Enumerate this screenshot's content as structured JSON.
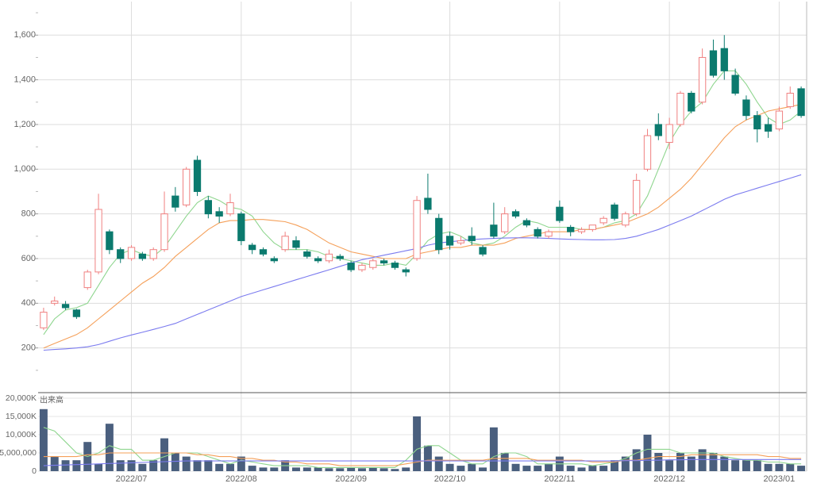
{
  "chart_data": {
    "type": "candlestick",
    "categories": [
      null,
      null,
      null,
      null,
      null,
      null,
      null,
      null,
      "2022/07",
      null,
      null,
      null,
      null,
      null,
      null,
      null,
      null,
      null,
      "2022/08",
      null,
      null,
      null,
      null,
      null,
      null,
      null,
      null,
      null,
      "2022/09",
      null,
      null,
      null,
      null,
      null,
      null,
      null,
      null,
      "2022/10",
      null,
      null,
      null,
      null,
      null,
      null,
      null,
      null,
      null,
      "2022/11",
      null,
      null,
      null,
      null,
      null,
      null,
      null,
      null,
      null,
      "2022/12",
      null,
      null,
      null,
      null,
      null,
      null,
      null,
      null,
      null,
      "2023/01",
      null,
      null
    ],
    "open": [
      290,
      400,
      395,
      370,
      470,
      540,
      720,
      640,
      600,
      620,
      600,
      640,
      880,
      840,
      1040,
      860,
      810,
      800,
      800,
      660,
      640,
      600,
      640,
      680,
      630,
      600,
      590,
      610,
      580,
      550,
      560,
      590,
      580,
      550,
      600,
      870,
      780,
      700,
      670,
      700,
      650,
      750,
      720,
      810,
      770,
      730,
      700,
      830,
      740,
      720,
      730,
      760,
      840,
      750,
      800,
      1000,
      1200,
      1120,
      1200,
      1340,
      1300,
      1530,
      1540,
      1420,
      1310,
      1240,
      1200,
      1180,
      1280,
      1360
    ],
    "high": [
      380,
      430,
      410,
      375,
      550,
      890,
      730,
      650,
      660,
      630,
      650,
      900,
      920,
      1010,
      1060,
      880,
      830,
      890,
      810,
      670,
      650,
      610,
      720,
      700,
      640,
      610,
      640,
      620,
      590,
      580,
      600,
      600,
      590,
      560,
      880,
      980,
      800,
      720,
      700,
      740,
      660,
      850,
      830,
      820,
      780,
      740,
      730,
      860,
      750,
      740,
      750,
      790,
      850,
      810,
      980,
      1180,
      1250,
      1230,
      1350,
      1350,
      1540,
      1580,
      1600,
      1450,
      1330,
      1260,
      1230,
      1280,
      1370,
      1370
    ],
    "low": [
      280,
      390,
      370,
      330,
      460,
      530,
      620,
      580,
      590,
      590,
      590,
      630,
      810,
      830,
      880,
      780,
      760,
      790,
      660,
      620,
      610,
      580,
      630,
      640,
      600,
      580,
      580,
      590,
      540,
      540,
      550,
      570,
      550,
      520,
      590,
      800,
      620,
      640,
      660,
      660,
      610,
      690,
      710,
      780,
      740,
      690,
      690,
      760,
      700,
      710,
      720,
      750,
      770,
      740,
      790,
      990,
      1130,
      1090,
      1190,
      1250,
      1290,
      1410,
      1400,
      1330,
      1220,
      1120,
      1140,
      1170,
      1270,
      1230
    ],
    "close": [
      360,
      410,
      380,
      340,
      540,
      820,
      640,
      600,
      650,
      600,
      640,
      800,
      830,
      1000,
      900,
      800,
      790,
      850,
      680,
      640,
      620,
      590,
      700,
      650,
      610,
      590,
      620,
      600,
      550,
      570,
      590,
      580,
      560,
      540,
      860,
      820,
      640,
      660,
      680,
      680,
      620,
      700,
      800,
      790,
      750,
      700,
      720,
      770,
      720,
      730,
      750,
      780,
      780,
      800,
      950,
      1150,
      1150,
      1200,
      1340,
      1260,
      1500,
      1420,
      1440,
      1340,
      1240,
      1180,
      1170,
      1260,
      1340,
      1240
    ],
    "up_color": "#f08080",
    "down_color": "#0b7a6e",
    "ylim": [
      0,
      1750
    ],
    "yticks": [
      200,
      400,
      600,
      800,
      {
        "value": 1000,
        "label": "1,000"
      },
      {
        "value": 1200,
        "label": "1,200"
      },
      {
        "value": 1400,
        "label": "1,400"
      },
      {
        "value": 1600,
        "label": "1,600"
      }
    ],
    "grid": true,
    "moving_averages": [
      {
        "color": "#8fd68f",
        "values": [
          260,
          330,
          370,
          380,
          400,
          480,
          560,
          620,
          640,
          620,
          610,
          650,
          720,
          790,
          850,
          880,
          860,
          830,
          820,
          790,
          720,
          670,
          640,
          640,
          640,
          630,
          610,
          600,
          590,
          580,
          570,
          570,
          580,
          570,
          620,
          680,
          710,
          720,
          700,
          670,
          660,
          670,
          700,
          740,
          770,
          760,
          740,
          740,
          740,
          730,
          730,
          740,
          760,
          770,
          800,
          880,
          1000,
          1120,
          1200,
          1260,
          1300,
          1380,
          1440,
          1440,
          1380,
          1300,
          1230,
          1200,
          1220,
          1260
        ]
      },
      {
        "color": "#f5a05a",
        "values": [
          200,
          220,
          240,
          260,
          290,
          330,
          370,
          410,
          450,
          490,
          520,
          560,
          610,
          650,
          690,
          730,
          760,
          770,
          770,
          775,
          775,
          770,
          765,
          750,
          730,
          700,
          670,
          650,
          630,
          620,
          610,
          600,
          600,
          600,
          620,
          630,
          640,
          650,
          650,
          660,
          660,
          660,
          670,
          690,
          700,
          710,
          720,
          720,
          720,
          730,
          730,
          740,
          750,
          760,
          780,
          800,
          830,
          870,
          910,
          960,
          1020,
          1080,
          1140,
          1190,
          1220,
          1240,
          1260,
          1270,
          1280,
          1290
        ]
      },
      {
        "color": "#7b7bef",
        "values": [
          190,
          193,
          196,
          200,
          205,
          215,
          230,
          245,
          258,
          270,
          283,
          296,
          310,
          330,
          350,
          370,
          390,
          410,
          430,
          445,
          460,
          475,
          490,
          505,
          520,
          535,
          550,
          565,
          580,
          595,
          605,
          615,
          625,
          635,
          645,
          660,
          670,
          675,
          680,
          685,
          688,
          690,
          692,
          693,
          693,
          692,
          690,
          688,
          686,
          685,
          684,
          684,
          685,
          690,
          700,
          715,
          730,
          750,
          770,
          790,
          815,
          840,
          865,
          885,
          900,
          915,
          930,
          945,
          960,
          975
        ]
      }
    ],
    "volume": {
      "label": "出来高",
      "color": "#4a5f7e",
      "values": [
        17000000,
        4000000,
        3000000,
        3000000,
        8000000,
        2000000,
        13000000,
        3000000,
        3000000,
        2000000,
        3000000,
        9000000,
        5000000,
        4000000,
        3000000,
        3000000,
        2000000,
        2000000,
        4000000,
        1500000,
        1000000,
        1000000,
        3000000,
        1000000,
        1000000,
        1000000,
        800000,
        800000,
        1000000,
        800000,
        1000000,
        800000,
        600000,
        1000000,
        15000000,
        7000000,
        4000000,
        2000000,
        1500000,
        2000000,
        1000000,
        12000000,
        5000000,
        2000000,
        1500000,
        1500000,
        2000000,
        4000000,
        1500000,
        1000000,
        1500000,
        1500000,
        3000000,
        4000000,
        6000000,
        10000000,
        5000000,
        3000000,
        5000000,
        4000000,
        6000000,
        5000000,
        4000000,
        3000000,
        3000000,
        3000000,
        2000000,
        2000000,
        2000000,
        1500000
      ],
      "ylim": [
        0,
        21300000
      ],
      "yticks": [
        0,
        {
          "value": 5000000,
          "label": "5,000,000"
        },
        {
          "value": 10000000,
          "label": "10,000K"
        },
        {
          "value": 15000000,
          "label": "15,000K"
        },
        {
          "value": 20000000,
          "label": "20,000K"
        }
      ],
      "moving_averages": [
        {
          "color": "#8fd68f",
          "values": [
            12000000,
            11000000,
            8000000,
            5000000,
            4000000,
            5000000,
            7000000,
            6000000,
            6000000,
            3000000,
            3000000,
            4000000,
            5000000,
            5000000,
            5000000,
            4000000,
            3000000,
            2000000,
            3000000,
            2500000,
            2000000,
            1500000,
            1500000,
            1500000,
            1500000,
            1000000,
            1000000,
            1000000,
            1000000,
            1000000,
            1000000,
            1000000,
            1000000,
            3000000,
            6000000,
            7000000,
            7000000,
            5000000,
            3000000,
            2000000,
            2000000,
            4000000,
            5000000,
            5000000,
            4000000,
            2000000,
            2000000,
            2000000,
            2000000,
            2000000,
            1500000,
            2000000,
            2500000,
            3500000,
            5000000,
            6000000,
            6000000,
            6000000,
            5000000,
            5000000,
            5000000,
            5000000,
            4000000,
            3500000,
            3000000,
            3000000,
            2500000,
            2500000,
            2000000,
            2000000
          ]
        },
        {
          "color": "#f5a05a",
          "values": [
            4000000,
            4000000,
            4000000,
            4000000,
            4500000,
            4500000,
            5000000,
            5000000,
            5000000,
            5000000,
            5000000,
            5000000,
            5000000,
            5000000,
            4500000,
            4500000,
            4000000,
            4000000,
            3500000,
            3500000,
            3000000,
            3000000,
            2500000,
            2500000,
            2000000,
            2000000,
            2000000,
            1500000,
            1500000,
            1500000,
            1500000,
            1500000,
            1500000,
            2000000,
            2500000,
            3000000,
            3000000,
            3000000,
            3000000,
            3000000,
            3000000,
            3500000,
            3500000,
            3500000,
            3500000,
            3000000,
            3000000,
            3000000,
            3000000,
            3000000,
            2500000,
            2500000,
            2500000,
            3000000,
            3000000,
            3500000,
            4000000,
            4000000,
            4000000,
            4500000,
            4500000,
            4500000,
            4500000,
            4500000,
            4500000,
            4500000,
            4000000,
            4000000,
            3500000,
            3500000
          ]
        },
        {
          "color": "#7b7bef",
          "values": [
            1500000,
            1600000,
            1700000,
            1800000,
            1900000,
            2000000,
            2100000,
            2200000,
            2300000,
            2400000,
            2500000,
            2600000,
            2700000,
            2800000,
            2800000,
            2800000,
            2800000,
            2800000,
            2800000,
            2800000,
            2800000,
            2800000,
            2800000,
            2800000,
            2800000,
            2800000,
            2800000,
            2800000,
            2800000,
            2800000,
            2800000,
            2800000,
            2800000,
            2800000,
            2800000,
            2800000,
            2800000,
            2800000,
            2800000,
            2800000,
            2800000,
            2800000,
            2800000,
            2800000,
            2800000,
            2800000,
            2800000,
            2800000,
            2800000,
            2800000,
            2800000,
            2800000,
            2800000,
            2900000,
            2900000,
            3000000,
            3000000,
            3100000,
            3100000,
            3200000,
            3200000,
            3200000,
            3200000,
            3200000,
            3200000,
            3200000,
            3200000,
            3200000,
            3200000,
            3200000
          ]
        }
      ]
    }
  }
}
